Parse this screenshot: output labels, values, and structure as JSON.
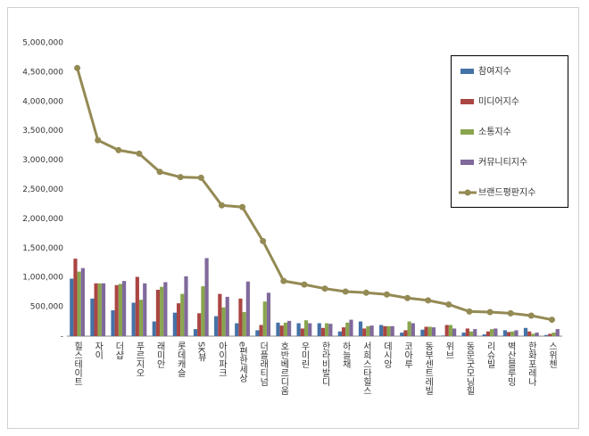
{
  "chart_data": {
    "type": "bar",
    "categories": [
      "힐스테이트",
      "자이",
      "더샵",
      "푸르지오",
      "래미안",
      "롯데캐슬",
      "SK뷰",
      "아이파크",
      "e편한세상",
      "더플래티넘",
      "호반베르디움",
      "우미린",
      "한라비발디",
      "하늘채",
      "서희스타힐스",
      "데시앙",
      "코아루",
      "동부센트레빌",
      "위브",
      "동문굿모닝힐",
      "리슈빌",
      "벽산블루밍",
      "한화포레나",
      "스위첸"
    ],
    "series": [
      {
        "name": "참여지수",
        "color": "#4572a7",
        "values": [
          980000,
          640000,
          440000,
          570000,
          250000,
          400000,
          120000,
          340000,
          220000,
          100000,
          230000,
          220000,
          220000,
          80000,
          250000,
          190000,
          60000,
          110000,
          10000,
          60000,
          30000,
          100000,
          140000,
          20000
        ]
      },
      {
        "name": "미디어지수",
        "color": "#aa4643",
        "values": [
          1320000,
          900000,
          870000,
          1010000,
          790000,
          560000,
          390000,
          720000,
          640000,
          190000,
          180000,
          130000,
          140000,
          150000,
          130000,
          170000,
          100000,
          160000,
          190000,
          130000,
          80000,
          70000,
          80000,
          40000
        ]
      },
      {
        "name": "소통지수",
        "color": "#89a54e",
        "values": [
          1100000,
          900000,
          890000,
          620000,
          840000,
          720000,
          850000,
          490000,
          410000,
          590000,
          230000,
          270000,
          220000,
          230000,
          170000,
          170000,
          250000,
          160000,
          190000,
          80000,
          120000,
          80000,
          40000,
          60000
        ]
      },
      {
        "name": "커뮤니티지수",
        "color": "#80699b",
        "values": [
          1160000,
          900000,
          940000,
          900000,
          920000,
          1020000,
          1330000,
          670000,
          930000,
          740000,
          260000,
          220000,
          210000,
          280000,
          180000,
          170000,
          220000,
          150000,
          130000,
          120000,
          130000,
          100000,
          60000,
          120000
        ]
      },
      {
        "name": "브랜드평판지수",
        "type": "line",
        "color": "#948a54",
        "values": [
          4570000,
          3340000,
          3170000,
          3110000,
          2800000,
          2710000,
          2700000,
          2230000,
          2200000,
          1620000,
          940000,
          880000,
          810000,
          760000,
          740000,
          710000,
          650000,
          610000,
          540000,
          420000,
          410000,
          390000,
          350000,
          280000
        ]
      }
    ],
    "ylim": [
      0,
      5000000
    ],
    "yticks": [
      {
        "value": 0,
        "label": "-"
      },
      {
        "value": 500000,
        "label": "500,000"
      },
      {
        "value": 1000000,
        "label": "1,000,000"
      },
      {
        "value": 1500000,
        "label": "1,500,000"
      },
      {
        "value": 2000000,
        "label": "2,000,000"
      },
      {
        "value": 2500000,
        "label": "2,500,000"
      },
      {
        "value": 3000000,
        "label": "3,000,000"
      },
      {
        "value": 3500000,
        "label": "3,500,000"
      },
      {
        "value": 4000000,
        "label": "4,000,000"
      },
      {
        "value": 4500000,
        "label": "4,500,000"
      },
      {
        "value": 5000000,
        "label": "5,000,000"
      }
    ],
    "grid": false,
    "legend": "right"
  }
}
